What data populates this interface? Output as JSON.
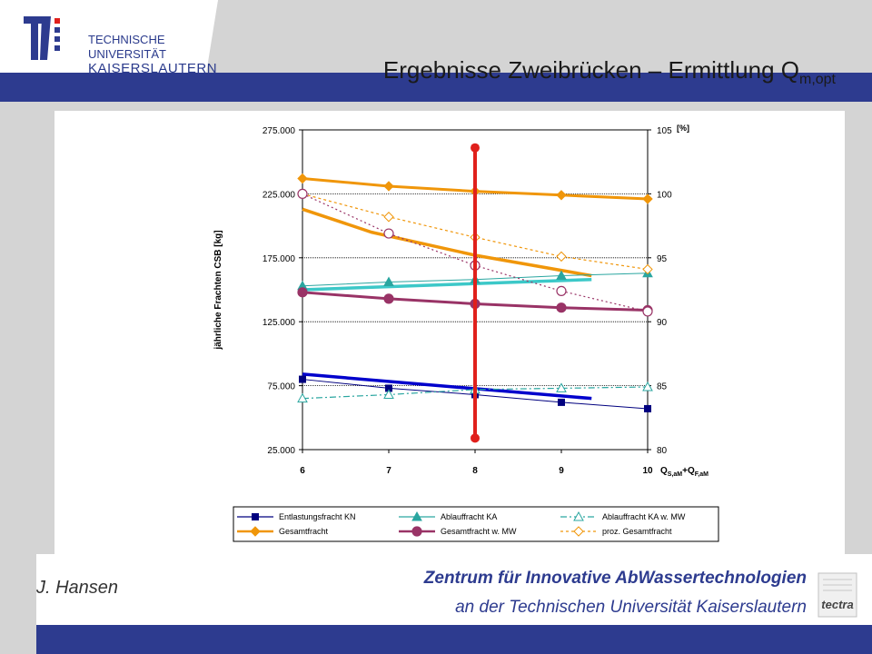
{
  "header": {
    "title_main": "Ergebnisse Zweibrücken – Ermittlung Q",
    "title_sub": "m,opt",
    "logo_line1": "TECHNISCHE UNIVERSITÄT",
    "logo_line2": "KAISERSLAUTERN"
  },
  "footer": {
    "author": "J. Hansen",
    "org_line1": "Zentrum für Innovative AbWassertechnologien",
    "org_line2": "an der Technischen Universität Kaiserslautern",
    "partner_logo_text": "tectra"
  },
  "colors": {
    "band_gray": "#d4d4d4",
    "band_blue": "#2d3b8f",
    "blue": "#0000cc",
    "navy": "#00007f",
    "teal": "#2aa6a0",
    "cyan": "#3cc8c8",
    "orange": "#f0960a",
    "purple": "#993366",
    "red": "#e0201c"
  },
  "chart_data": {
    "type": "line",
    "x": [
      6,
      7,
      8,
      9,
      10
    ],
    "xlim": [
      6,
      10
    ],
    "ylim": [
      25000,
      275000
    ],
    "y2lim": [
      80,
      105
    ],
    "yticks": [
      "25.000",
      "75.000",
      "125.000",
      "175.000",
      "225.000",
      "275.000"
    ],
    "y2ticks": [
      "80",
      "85",
      "90",
      "95",
      "100",
      "105"
    ],
    "xticks": [
      "6",
      "7",
      "8",
      "9",
      "10"
    ],
    "ylabel": "jährliche Frachten CSB [kg]",
    "y2label": "[%]",
    "xlabel_main": "Q",
    "xlabel_sub1": "S,aM",
    "xlabel_mid": "+Q",
    "xlabel_sub2": "F,aM",
    "series": [
      {
        "name": "Entlastungsfracht KN",
        "axis": "left",
        "values": [
          80000,
          73000,
          68000,
          62000,
          57000
        ]
      },
      {
        "name": "Ablauffracht KA",
        "axis": "left",
        "values": [
          153000,
          156000,
          158000,
          161000,
          163000
        ]
      },
      {
        "name": "Ablauffracht KA w. MW",
        "axis": "left",
        "values": [
          65000,
          68000,
          72000,
          73000,
          74000
        ]
      },
      {
        "name": "Gesamtfracht",
        "axis": "left",
        "values": [
          237000,
          231000,
          227000,
          224000,
          221000
        ]
      },
      {
        "name": "Gesamtfracht w. MW",
        "axis": "left",
        "values": [
          148000,
          143000,
          139000,
          136000,
          134000
        ]
      },
      {
        "name": "proz. Gesamtfracht",
        "axis": "right",
        "values": [
          100,
          98.2,
          96.6,
          95.1,
          94.1
        ]
      },
      {
        "name": "",
        "axis": "right",
        "values": [
          100,
          96.9,
          94.4,
          92.4,
          90.8
        ]
      }
    ],
    "trend_lines": [
      {
        "x": [
          6,
          6.8,
          8,
          9.35
        ],
        "values": [
          213000,
          195000,
          177000,
          161000
        ]
      },
      {
        "x": [
          6,
          9.35
        ],
        "values": [
          150000,
          158000
        ]
      },
      {
        "x": [
          6,
          9.35
        ],
        "values": [
          84000,
          65000
        ]
      }
    ],
    "vertical_marker": {
      "x": 8,
      "y_top": 261000,
      "y_bottom": 34000
    },
    "grid": true,
    "legend_position": "bottom"
  }
}
